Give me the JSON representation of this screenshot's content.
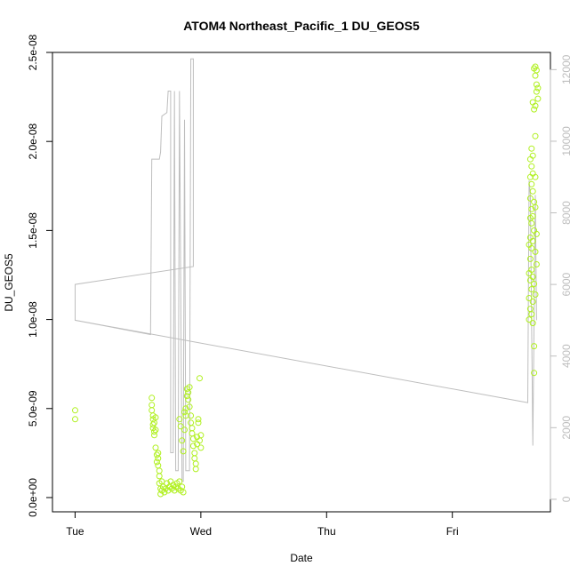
{
  "chart_data": {
    "type": "scatter",
    "title": "ATOM4 Northeast_Pacific_1 DU_GEOS5",
    "xlabel": "Date",
    "ylabel": "DU_GEOS5",
    "x_ticks": [
      "Tue",
      "Wed",
      "Thu",
      "Fri"
    ],
    "x_tick_values": [
      0,
      1,
      2,
      3
    ],
    "xlim": [
      -0.18,
      3.78
    ],
    "ylim": [
      -8e-10,
      2.5e-08
    ],
    "y_ticks": [
      0,
      5e-09,
      1e-08,
      1.5e-08,
      2e-08,
      2.5e-08
    ],
    "y_tick_labels": [
      "0.0e+00",
      "5.0e-09",
      "1.0e-08",
      "1.5e-08",
      "2.0e-08",
      "2.5e-08"
    ],
    "y2_ylim": [
      -350,
      12480
    ],
    "y2_ticks": [
      0,
      2000,
      4000,
      6000,
      8000,
      10000,
      12000
    ],
    "y2_tick_labels": [
      "0",
      "2000",
      "4000",
      "6000",
      "8000",
      "10000",
      "12000"
    ],
    "colors": {
      "points": "#b0f020",
      "line": "#bebebe",
      "axes": "#000000"
    },
    "series": [
      {
        "type": "scatter",
        "points": [
          [
            0.0,
            4.9e-09
          ],
          [
            0.0,
            4.4e-09
          ],
          [
            0.61,
            5.6e-09
          ],
          [
            0.61,
            5.2e-09
          ],
          [
            0.61,
            4.9e-09
          ],
          [
            0.62,
            4.6e-09
          ],
          [
            0.62,
            4.4e-09
          ],
          [
            0.62,
            4.1e-09
          ],
          [
            0.62,
            3.9e-09
          ],
          [
            0.63,
            3.7e-09
          ],
          [
            0.63,
            3.5e-09
          ],
          [
            0.63,
            4.2e-09
          ],
          [
            0.64,
            3.8e-09
          ],
          [
            0.64,
            4.5e-09
          ],
          [
            0.64,
            2.8e-09
          ],
          [
            0.65,
            2.4e-09
          ],
          [
            0.65,
            2e-09
          ],
          [
            0.66,
            2.5e-09
          ],
          [
            0.66,
            2.2e-09
          ],
          [
            0.66,
            1.8e-09
          ],
          [
            0.67,
            1.5e-09
          ],
          [
            0.67,
            1.2e-09
          ],
          [
            0.67,
            8e-10
          ],
          [
            0.68,
            5e-10
          ],
          [
            0.68,
            2e-10
          ],
          [
            0.69,
            4e-10
          ],
          [
            0.69,
            9e-10
          ],
          [
            0.7,
            6e-10
          ],
          [
            0.71,
            3e-10
          ],
          [
            0.72,
            5e-10
          ],
          [
            0.73,
            8e-10
          ],
          [
            0.74,
            4e-10
          ],
          [
            0.75,
            6e-10
          ],
          [
            0.76,
            9e-10
          ],
          [
            0.77,
            5e-10
          ],
          [
            0.78,
            7e-10
          ],
          [
            0.79,
            4e-10
          ],
          [
            0.8,
            6e-10
          ],
          [
            0.81,
            8e-10
          ],
          [
            0.82,
            5e-10
          ],
          [
            0.83,
            9e-10
          ],
          [
            0.84,
            4e-10
          ],
          [
            0.85,
            6e-10
          ],
          [
            0.86,
            3e-10
          ],
          [
            0.83,
            4.4e-09
          ],
          [
            0.84,
            4e-09
          ],
          [
            0.85,
            3.2e-09
          ],
          [
            0.86,
            2.6e-09
          ],
          [
            0.87,
            3.8e-09
          ],
          [
            0.87,
            4.8e-09
          ],
          [
            0.88,
            5e-09
          ],
          [
            0.88,
            4.6e-09
          ],
          [
            0.89,
            6.1e-09
          ],
          [
            0.89,
            5.7e-09
          ],
          [
            0.9,
            5.5e-09
          ],
          [
            0.9,
            5.9e-09
          ],
          [
            0.91,
            6.2e-09
          ],
          [
            0.91,
            5.1e-09
          ],
          [
            0.92,
            4.6e-09
          ],
          [
            0.92,
            4.2e-09
          ],
          [
            0.93,
            3.9e-09
          ],
          [
            0.93,
            3.6e-09
          ],
          [
            0.94,
            3.3e-09
          ],
          [
            0.94,
            2.9e-09
          ],
          [
            0.95,
            2.5e-09
          ],
          [
            0.95,
            2.2e-09
          ],
          [
            0.96,
            1.9e-09
          ],
          [
            0.96,
            1.6e-09
          ],
          [
            0.97,
            3.4e-09
          ],
          [
            0.97,
            3e-09
          ],
          [
            0.98,
            4.2e-09
          ],
          [
            0.98,
            4.4e-09
          ],
          [
            0.99,
            6.7e-09
          ],
          [
            0.99,
            3.2e-09
          ],
          [
            1.0,
            2.8e-09
          ],
          [
            1.0,
            3.5e-09
          ],
          [
            3.65,
            2.41e-08
          ],
          [
            3.66,
            2.42e-08
          ],
          [
            3.66,
            2.37e-08
          ],
          [
            3.67,
            2.32e-08
          ],
          [
            3.67,
            2.28e-08
          ],
          [
            3.68,
            2.24e-08
          ],
          [
            3.66,
            2.2e-08
          ],
          [
            3.65,
            2.18e-08
          ],
          [
            3.64,
            2.22e-08
          ],
          [
            3.68,
            2.3e-08
          ],
          [
            3.67,
            2.4e-08
          ],
          [
            3.66,
            2.03e-08
          ],
          [
            3.63,
            1.96e-08
          ],
          [
            3.64,
            1.92e-08
          ],
          [
            3.62,
            1.9e-08
          ],
          [
            3.63,
            1.86e-08
          ],
          [
            3.64,
            1.82e-08
          ],
          [
            3.62,
            1.8e-08
          ],
          [
            3.66,
            1.8e-08
          ],
          [
            3.63,
            1.76e-08
          ],
          [
            3.64,
            1.72e-08
          ],
          [
            3.62,
            1.68e-08
          ],
          [
            3.65,
            1.66e-08
          ],
          [
            3.63,
            1.62e-08
          ],
          [
            3.66,
            1.63e-08
          ],
          [
            3.62,
            1.57e-08
          ],
          [
            3.64,
            1.58e-08
          ],
          [
            3.63,
            1.54e-08
          ],
          [
            3.65,
            1.5e-08
          ],
          [
            3.67,
            1.48e-08
          ],
          [
            3.62,
            1.46e-08
          ],
          [
            3.64,
            1.44e-08
          ],
          [
            3.61,
            1.42e-08
          ],
          [
            3.63,
            1.4e-08
          ],
          [
            3.66,
            1.38e-08
          ],
          [
            3.62,
            1.34e-08
          ],
          [
            3.67,
            1.31e-08
          ],
          [
            3.63,
            1.28e-08
          ],
          [
            3.61,
            1.26e-08
          ],
          [
            3.64,
            1.24e-08
          ],
          [
            3.62,
            1.22e-08
          ],
          [
            3.65,
            1.2e-08
          ],
          [
            3.63,
            1.17e-08
          ],
          [
            3.66,
            1.14e-08
          ],
          [
            3.61,
            1.12e-08
          ],
          [
            3.64,
            1.1e-08
          ],
          [
            3.62,
            1.06e-08
          ],
          [
            3.63,
            1.03e-08
          ],
          [
            3.61,
            1e-08
          ],
          [
            3.64,
            9.8e-09
          ],
          [
            3.65,
            8.5e-09
          ],
          [
            3.65,
            7e-09
          ]
        ]
      },
      {
        "type": "line",
        "axis": "right",
        "points": [
          [
            0.0,
            6000
          ],
          [
            0.0,
            5000
          ],
          [
            0.6,
            4600
          ],
          [
            0.61,
            9500
          ],
          [
            0.67,
            9500
          ],
          [
            0.68,
            9700
          ],
          [
            0.69,
            10700
          ],
          [
            0.73,
            10800
          ],
          [
            0.74,
            11400
          ],
          [
            0.76,
            11400
          ],
          [
            0.76,
            1300
          ],
          [
            0.78,
            1300
          ],
          [
            0.79,
            11400
          ],
          [
            0.8,
            800
          ],
          [
            0.82,
            800
          ],
          [
            0.83,
            11400
          ],
          [
            0.85,
            500
          ],
          [
            0.86,
            500
          ],
          [
            0.87,
            10600
          ],
          [
            0.88,
            800
          ],
          [
            0.91,
            800
          ],
          [
            0.92,
            12300
          ],
          [
            0.94,
            12300
          ],
          [
            0.94,
            6500
          ],
          [
            0.0,
            6000
          ],
          [
            0.0,
            5000
          ],
          [
            3.6,
            2700
          ],
          [
            3.61,
            8900
          ],
          [
            3.62,
            8500
          ],
          [
            3.64,
            1500
          ],
          [
            3.66,
            8500
          ],
          [
            3.67,
            5000
          ]
        ]
      }
    ]
  }
}
